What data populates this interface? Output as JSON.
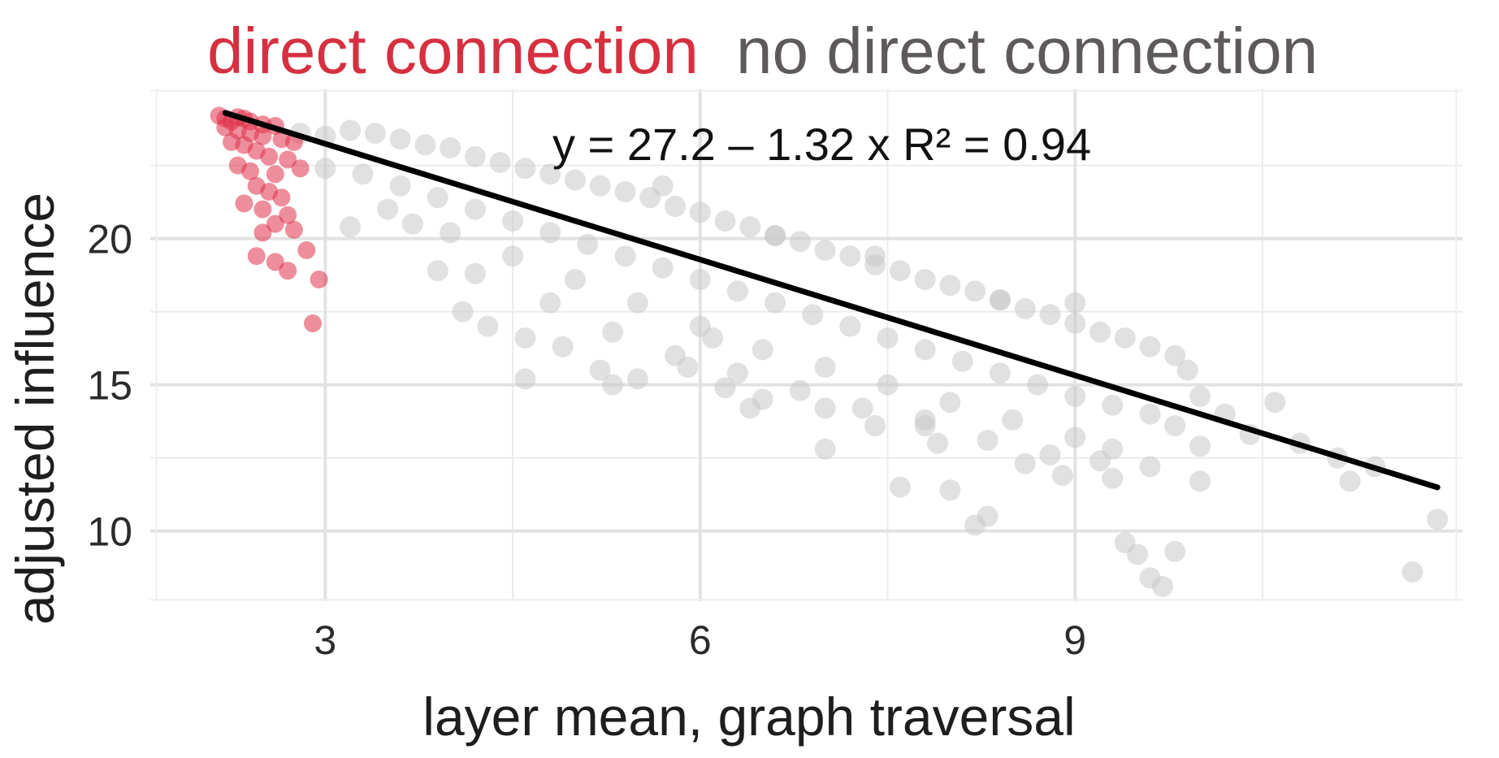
{
  "chart_data": {
    "type": "scatter",
    "title_parts": [
      {
        "text": "direct connection",
        "color": "#d63040"
      },
      {
        "text": "no direct connection",
        "color": "#5e5a5a"
      }
    ],
    "xlabel": "layer mean, graph traversal",
    "ylabel": "adjusted influence",
    "xlim": [
      1.6,
      12.1
    ],
    "ylim": [
      7.6,
      25.1
    ],
    "x_ticks": [
      3,
      6,
      9
    ],
    "y_ticks": [
      10,
      15,
      20
    ],
    "x_minor": [
      4.5,
      7.5,
      10.5
    ],
    "y_minor": [
      12.5,
      17.5,
      22.5
    ],
    "grid": true,
    "regression": {
      "intercept": 27.2,
      "slope": -1.32,
      "x_range": [
        2.2,
        11.9
      ],
      "color": "#000000",
      "label": "y = 27.2 – 1.32 x   R² = 0.94",
      "r2": 0.94
    },
    "series": [
      {
        "name": "direct connection",
        "color": "#e0324a",
        "points": [
          [
            2.15,
            24.2
          ],
          [
            2.2,
            24.1
          ],
          [
            2.25,
            24.0
          ],
          [
            2.3,
            24.15
          ],
          [
            2.35,
            24.1
          ],
          [
            2.4,
            24.0
          ],
          [
            2.5,
            23.9
          ],
          [
            2.6,
            23.85
          ],
          [
            2.2,
            23.8
          ],
          [
            2.3,
            23.7
          ],
          [
            2.4,
            23.6
          ],
          [
            2.5,
            23.5
          ],
          [
            2.65,
            23.4
          ],
          [
            2.75,
            23.3
          ],
          [
            2.25,
            23.3
          ],
          [
            2.35,
            23.2
          ],
          [
            2.45,
            23.0
          ],
          [
            2.55,
            22.8
          ],
          [
            2.7,
            22.7
          ],
          [
            2.3,
            22.5
          ],
          [
            2.4,
            22.3
          ],
          [
            2.6,
            22.2
          ],
          [
            2.8,
            22.4
          ],
          [
            2.45,
            21.8
          ],
          [
            2.55,
            21.6
          ],
          [
            2.65,
            21.4
          ],
          [
            2.35,
            21.2
          ],
          [
            2.5,
            21.0
          ],
          [
            2.7,
            20.8
          ],
          [
            2.6,
            20.5
          ],
          [
            2.5,
            20.2
          ],
          [
            2.75,
            20.3
          ],
          [
            2.45,
            19.4
          ],
          [
            2.6,
            19.2
          ],
          [
            2.7,
            18.9
          ],
          [
            2.85,
            19.6
          ],
          [
            2.95,
            18.6
          ],
          [
            2.9,
            17.1
          ]
        ]
      },
      {
        "name": "no direct connection",
        "color": "#c8c8c8",
        "points": [
          [
            2.8,
            23.6
          ],
          [
            3.0,
            23.5
          ],
          [
            3.2,
            23.7
          ],
          [
            3.4,
            23.6
          ],
          [
            3.6,
            23.4
          ],
          [
            3.8,
            23.2
          ],
          [
            4.0,
            23.1
          ],
          [
            4.2,
            22.8
          ],
          [
            4.4,
            22.6
          ],
          [
            4.6,
            22.4
          ],
          [
            4.8,
            22.2
          ],
          [
            5.0,
            22.0
          ],
          [
            5.2,
            21.8
          ],
          [
            5.4,
            21.6
          ],
          [
            5.6,
            21.4
          ],
          [
            5.8,
            21.1
          ],
          [
            6.0,
            20.9
          ],
          [
            6.2,
            20.6
          ],
          [
            6.4,
            20.4
          ],
          [
            6.6,
            20.1
          ],
          [
            6.8,
            19.9
          ],
          [
            7.0,
            19.6
          ],
          [
            7.2,
            19.4
          ],
          [
            7.4,
            19.1
          ],
          [
            7.6,
            18.9
          ],
          [
            7.8,
            18.6
          ],
          [
            8.0,
            18.4
          ],
          [
            8.2,
            18.2
          ],
          [
            8.4,
            17.9
          ],
          [
            8.6,
            17.6
          ],
          [
            8.8,
            17.4
          ],
          [
            9.0,
            17.1
          ],
          [
            9.2,
            16.8
          ],
          [
            9.4,
            16.6
          ],
          [
            9.6,
            16.3
          ],
          [
            9.8,
            16.0
          ],
          [
            3.0,
            22.4
          ],
          [
            3.3,
            22.2
          ],
          [
            3.6,
            21.8
          ],
          [
            3.9,
            21.4
          ],
          [
            4.2,
            21.0
          ],
          [
            4.5,
            20.6
          ],
          [
            4.8,
            20.2
          ],
          [
            5.1,
            19.8
          ],
          [
            5.4,
            19.4
          ],
          [
            5.7,
            19.0
          ],
          [
            6.0,
            18.6
          ],
          [
            6.3,
            18.2
          ],
          [
            6.6,
            17.8
          ],
          [
            6.9,
            17.4
          ],
          [
            7.2,
            17.0
          ],
          [
            7.5,
            16.6
          ],
          [
            7.8,
            16.2
          ],
          [
            8.1,
            15.8
          ],
          [
            8.4,
            15.4
          ],
          [
            8.7,
            15.0
          ],
          [
            9.0,
            14.6
          ],
          [
            9.3,
            14.3
          ],
          [
            9.6,
            14.0
          ],
          [
            3.5,
            21.0
          ],
          [
            4.0,
            20.2
          ],
          [
            4.5,
            19.4
          ],
          [
            5.0,
            18.6
          ],
          [
            5.5,
            17.8
          ],
          [
            6.0,
            17.0
          ],
          [
            6.5,
            16.2
          ],
          [
            7.0,
            15.6
          ],
          [
            7.5,
            15.0
          ],
          [
            8.0,
            14.4
          ],
          [
            8.5,
            13.8
          ],
          [
            9.0,
            13.2
          ],
          [
            9.3,
            12.8
          ],
          [
            4.2,
            18.8
          ],
          [
            4.8,
            17.8
          ],
          [
            5.3,
            16.8
          ],
          [
            5.8,
            16.0
          ],
          [
            6.3,
            15.4
          ],
          [
            6.8,
            14.8
          ],
          [
            7.3,
            14.2
          ],
          [
            7.8,
            13.6
          ],
          [
            8.3,
            13.1
          ],
          [
            8.8,
            12.6
          ],
          [
            3.2,
            20.4
          ],
          [
            3.7,
            20.5
          ],
          [
            4.3,
            17.0
          ],
          [
            4.6,
            16.6
          ],
          [
            4.9,
            16.3
          ],
          [
            5.2,
            15.5
          ],
          [
            5.5,
            15.2
          ],
          [
            5.9,
            15.6
          ],
          [
            6.2,
            14.9
          ],
          [
            6.5,
            14.5
          ],
          [
            7.0,
            14.2
          ],
          [
            7.4,
            13.6
          ],
          [
            7.9,
            13.0
          ],
          [
            8.6,
            12.3
          ],
          [
            8.9,
            11.9
          ],
          [
            9.2,
            12.4
          ],
          [
            9.6,
            12.2
          ],
          [
            9.8,
            13.6
          ],
          [
            10.0,
            12.9
          ],
          [
            9.9,
            15.5
          ],
          [
            10.0,
            14.6
          ],
          [
            10.2,
            14.0
          ],
          [
            10.4,
            13.3
          ],
          [
            10.6,
            14.4
          ],
          [
            10.8,
            13.0
          ],
          [
            11.1,
            12.5
          ],
          [
            11.4,
            12.2
          ],
          [
            3.9,
            18.9
          ],
          [
            4.1,
            17.5
          ],
          [
            4.6,
            15.2
          ],
          [
            5.3,
            15.0
          ],
          [
            6.4,
            14.2
          ],
          [
            7.0,
            12.8
          ],
          [
            7.6,
            11.5
          ],
          [
            8.0,
            11.4
          ],
          [
            8.2,
            10.2
          ],
          [
            8.3,
            10.5
          ],
          [
            9.3,
            11.8
          ],
          [
            9.4,
            9.6
          ],
          [
            9.5,
            9.2
          ],
          [
            9.6,
            8.4
          ],
          [
            9.7,
            8.1
          ],
          [
            9.8,
            9.3
          ],
          [
            10.0,
            11.7
          ],
          [
            11.2,
            11.7
          ],
          [
            11.7,
            8.6
          ],
          [
            11.9,
            10.4
          ],
          [
            5.7,
            21.8
          ],
          [
            6.6,
            20.1
          ],
          [
            7.4,
            19.4
          ],
          [
            8.4,
            17.9
          ],
          [
            9.0,
            17.8
          ],
          [
            7.8,
            13.8
          ],
          [
            6.1,
            16.6
          ]
        ]
      }
    ]
  }
}
